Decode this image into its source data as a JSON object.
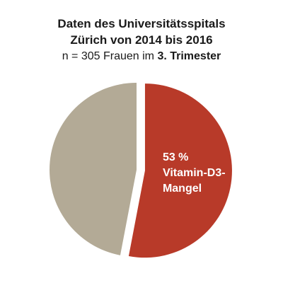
{
  "chart_data": {
    "type": "pie",
    "title": [
      "Daten des Universitätsspitals",
      "Zürich von 2014 bis 2016"
    ],
    "subtitle": {
      "prefix": "n = 305 Frauen im ",
      "emphasis": "3. Trimester"
    },
    "slices": [
      {
        "label_lines": [
          "53 %",
          "Vitamin-D3-",
          "Mangel"
        ],
        "value": 53,
        "color": "#b83a29",
        "exploded": true
      },
      {
        "label_lines": [],
        "value": 47,
        "color": "#b3aa96",
        "exploded": false
      }
    ]
  }
}
